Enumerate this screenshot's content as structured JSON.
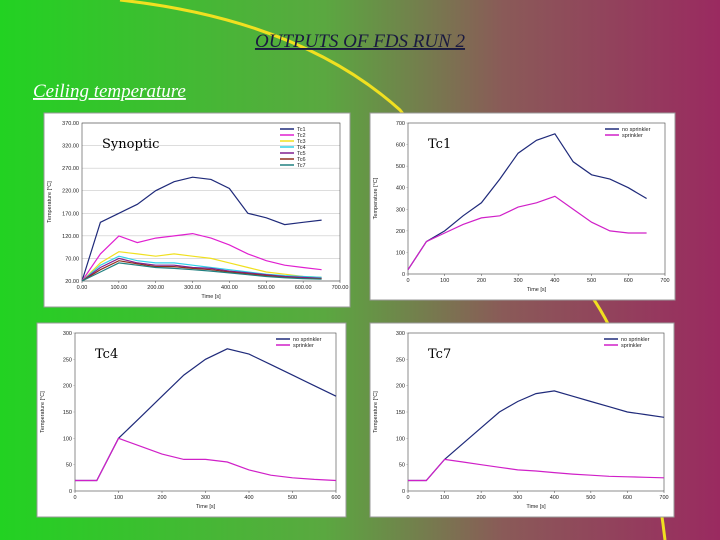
{
  "slide": {
    "title": "OUTPUTS OF FDS RUN 2",
    "subtitle": "Ceiling temperature"
  },
  "chart_data": [
    {
      "type": "line",
      "title": "Synoptic",
      "xlabel": "Time [s]",
      "ylabel": "Temperature [°C]",
      "x": [
        0,
        50,
        100,
        150,
        200,
        250,
        300,
        350,
        400,
        450,
        500,
        550,
        600,
        650
      ],
      "xlim": [
        0,
        700
      ],
      "xticks": [
        {
          "value": 0,
          "label": "0.00"
        },
        {
          "value": 100,
          "label": "100.00"
        },
        {
          "value": 200,
          "label": "200.00"
        },
        {
          "value": 300,
          "label": "300.00"
        },
        {
          "value": 400,
          "label": "400.00"
        },
        {
          "value": 500,
          "label": "500.00"
        },
        {
          "value": 600,
          "label": "600.00"
        },
        {
          "value": 700,
          "label": "700.00"
        }
      ],
      "ylim": [
        20,
        370
      ],
      "yticks": [
        {
          "value": 20,
          "label": "20.00"
        },
        {
          "value": 70,
          "label": "70.00"
        },
        {
          "value": 120,
          "label": "120.00"
        },
        {
          "value": 170,
          "label": "170.00"
        },
        {
          "value": 220,
          "label": "220.00"
        },
        {
          "value": 270,
          "label": "270.00"
        },
        {
          "value": 320,
          "label": "320.00"
        },
        {
          "value": 370,
          "label": "370.00"
        }
      ],
      "grid": true,
      "series": [
        {
          "name": "Tc1",
          "color": "#1f2a7a",
          "values": [
            20,
            150,
            170,
            190,
            220,
            240,
            250,
            245,
            225,
            170,
            160,
            145,
            150,
            155
          ]
        },
        {
          "name": "Tc2",
          "color": "#e020d0",
          "values": [
            20,
            80,
            120,
            105,
            115,
            120,
            125,
            115,
            100,
            80,
            65,
            55,
            50,
            45
          ]
        },
        {
          "name": "Tc3",
          "color": "#f0e020",
          "values": [
            20,
            60,
            85,
            80,
            75,
            80,
            75,
            70,
            60,
            50,
            40,
            35,
            30,
            28
          ]
        },
        {
          "name": "Tc4",
          "color": "#30d0e8",
          "values": [
            20,
            55,
            75,
            65,
            60,
            60,
            55,
            50,
            45,
            40,
            35,
            32,
            30,
            28
          ]
        },
        {
          "name": "Tc5",
          "color": "#802090",
          "values": [
            20,
            50,
            70,
            60,
            55,
            55,
            50,
            48,
            42,
            38,
            34,
            30,
            28,
            26
          ]
        },
        {
          "name": "Tc6",
          "color": "#903020",
          "values": [
            20,
            45,
            65,
            58,
            52,
            52,
            48,
            45,
            40,
            36,
            32,
            28,
            26,
            25
          ]
        },
        {
          "name": "Tc7",
          "color": "#208080",
          "values": [
            20,
            40,
            60,
            55,
            50,
            48,
            45,
            42,
            38,
            34,
            30,
            27,
            25,
            24
          ]
        }
      ]
    },
    {
      "type": "line",
      "title": "Tc1",
      "xlabel": "Time [s]",
      "ylabel": "Temperature [°C]",
      "x": [
        0,
        50,
        100,
        150,
        200,
        250,
        300,
        350,
        400,
        450,
        500,
        550,
        600,
        650
      ],
      "xlim": [
        0,
        700
      ],
      "xticks": [
        0,
        100,
        200,
        300,
        400,
        500,
        600,
        700
      ],
      "ylim": [
        0,
        700
      ],
      "yticks": [
        0,
        100,
        200,
        300,
        400,
        500,
        600,
        700
      ],
      "grid": false,
      "series": [
        {
          "name": "no sprinkler",
          "color": "#1f2a7a",
          "values": [
            20,
            150,
            200,
            270,
            330,
            440,
            560,
            620,
            650,
            520,
            460,
            440,
            400,
            350
          ]
        },
        {
          "name": "sprinkler",
          "color": "#d020c8",
          "values": [
            20,
            150,
            190,
            230,
            260,
            270,
            310,
            330,
            360,
            300,
            240,
            200,
            190,
            190
          ]
        }
      ]
    },
    {
      "type": "line",
      "title": "Tc4",
      "xlabel": "Time [s]",
      "ylabel": "Temperature [°C]",
      "x": [
        0,
        50,
        100,
        150,
        200,
        250,
        300,
        350,
        400,
        450,
        500,
        550,
        600
      ],
      "xlim": [
        0,
        600
      ],
      "xticks": [
        0,
        100,
        200,
        300,
        400,
        500,
        600
      ],
      "ylim": [
        0,
        300
      ],
      "yticks": [
        0,
        50,
        100,
        150,
        200,
        250,
        300
      ],
      "grid": false,
      "series": [
        {
          "name": "no sprinkler",
          "color": "#1f2a7a",
          "values": [
            20,
            20,
            100,
            140,
            180,
            220,
            250,
            270,
            260,
            240,
            220,
            200,
            180
          ]
        },
        {
          "name": "sprinkler",
          "color": "#d020c8",
          "values": [
            20,
            20,
            100,
            85,
            70,
            60,
            60,
            55,
            40,
            30,
            25,
            22,
            20
          ]
        }
      ]
    },
    {
      "type": "line",
      "title": "Tc7",
      "xlabel": "Time [s]",
      "ylabel": "Temperature [°C]",
      "x": [
        0,
        50,
        100,
        150,
        200,
        250,
        300,
        350,
        400,
        450,
        500,
        550,
        600,
        650,
        700
      ],
      "xlim": [
        0,
        700
      ],
      "xticks": [
        0,
        100,
        200,
        300,
        400,
        500,
        600,
        700
      ],
      "ylim": [
        0,
        300
      ],
      "yticks": [
        0,
        50,
        100,
        150,
        200,
        250,
        300
      ],
      "grid": false,
      "series": [
        {
          "name": "no sprinkler",
          "color": "#1f2a7a",
          "values": [
            20,
            20,
            60,
            90,
            120,
            150,
            170,
            185,
            190,
            180,
            170,
            160,
            150,
            145,
            140
          ]
        },
        {
          "name": "sprinkler",
          "color": "#d020c8",
          "values": [
            20,
            20,
            60,
            55,
            50,
            45,
            40,
            38,
            35,
            32,
            30,
            28,
            27,
            26,
            25
          ]
        }
      ]
    }
  ]
}
